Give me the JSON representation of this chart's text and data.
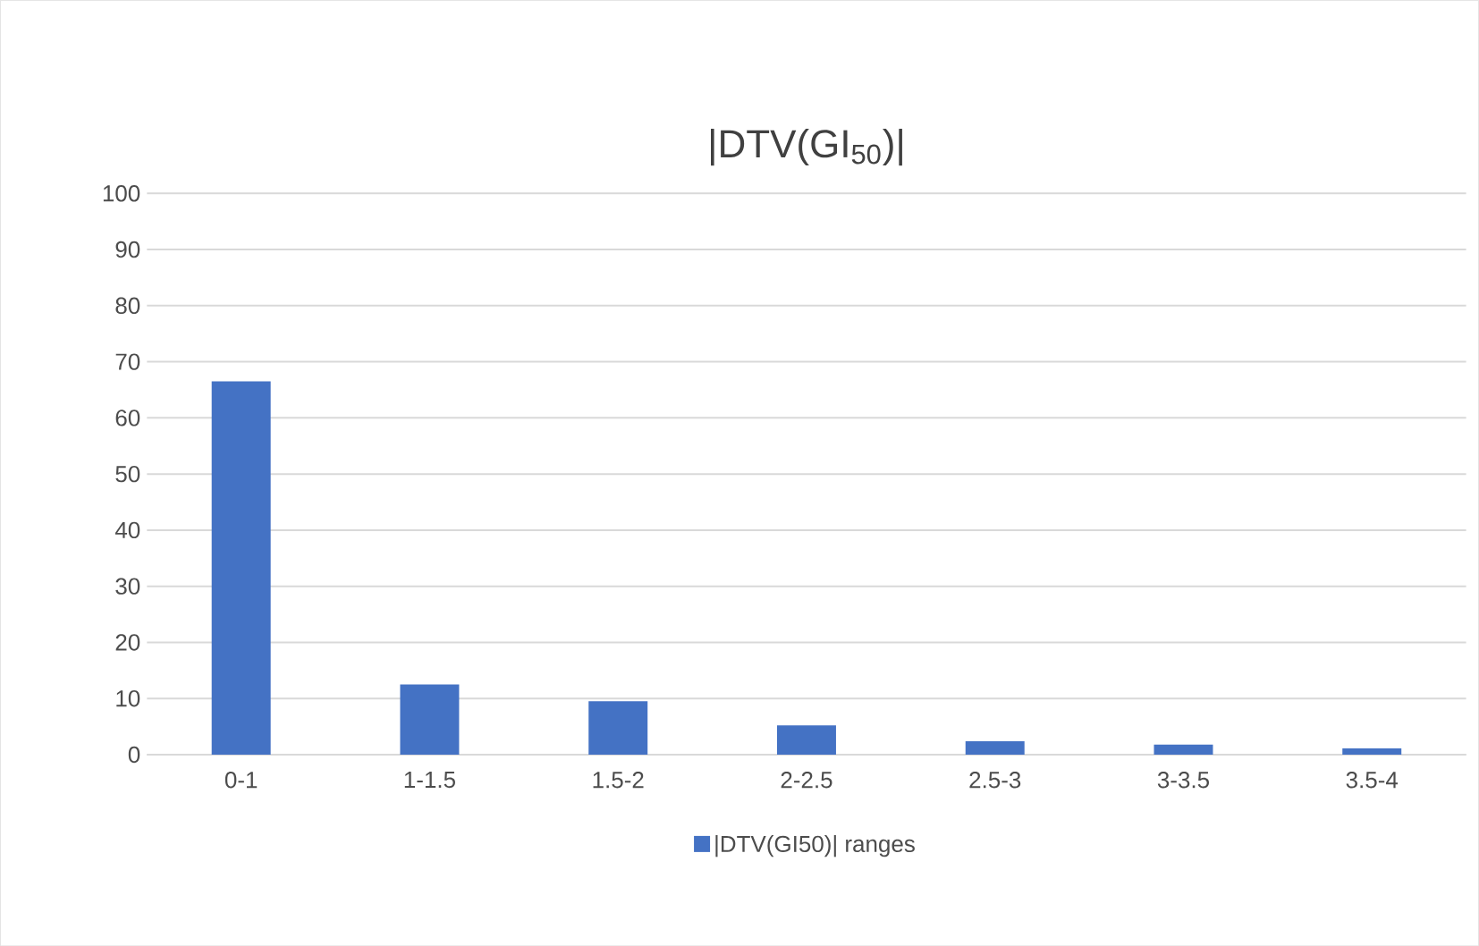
{
  "chart_data": {
    "type": "bar",
    "title": "|DTV(GI$_{50}$)|",
    "categories": [
      "0-1",
      "1-1.5",
      "1.5-2",
      "2-2.5",
      "2.5-3",
      "3-3.5",
      "3.5-4"
    ],
    "series": [
      {
        "name": "|DTV(GI50)| ranges",
        "color": "#4472c4",
        "values": [
          66.5,
          12.5,
          9.5,
          5.2,
          2.4,
          1.8,
          1.1
        ]
      }
    ],
    "ylim": [
      0,
      100
    ],
    "yticks": [
      0,
      10,
      20,
      30,
      40,
      50,
      60,
      70,
      80,
      90,
      100
    ],
    "grid": "y",
    "legend": "bottom"
  }
}
